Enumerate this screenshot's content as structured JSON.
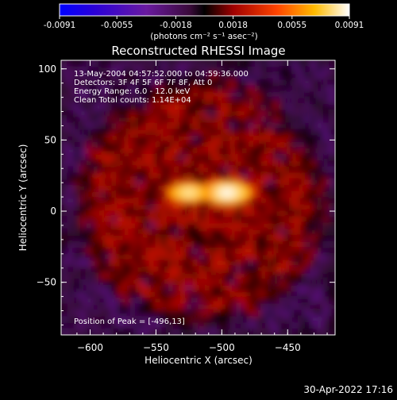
{
  "chart_data": {
    "type": "heatmap",
    "title": "Reconstructed RHESSI Image",
    "xlabel": "Heliocentric X (arcsec)",
    "ylabel": "Heliocentric Y (arcsec)",
    "xlim": [
      -622,
      -414
    ],
    "ylim": [
      -87,
      106
    ],
    "x_ticks": [
      -600,
      -550,
      -500,
      -450
    ],
    "y_ticks": [
      -50,
      0,
      50,
      100
    ],
    "colorbar": {
      "colormap": "hot-with-blue-negative",
      "range": [
        -0.0091,
        0.0091
      ],
      "tick_values": [
        -0.0091,
        -0.0055,
        -0.0018,
        0.0018,
        0.0055,
        0.0091
      ],
      "tick_labels": [
        "-0.0091",
        "-0.0055",
        "-0.0018",
        "0.0018",
        "0.0055",
        "0.0091"
      ],
      "label": "(photons cm⁻² s⁻¹ asec⁻²)"
    },
    "info_lines": [
      "13-May-2004 04:57:52.000 to 04:59:36.000",
      "Detectors: 3F 4F 5F 6F 7F 8F, Att 0",
      "Energy Range: 6.0 - 12.0 keV",
      "Clean    Total counts: 1.14E+04"
    ],
    "peak_label": "Position of Peak = [-496,13]",
    "peak": [
      -496,
      13
    ],
    "sources": [
      {
        "x": -496,
        "y": 13,
        "amp": 1.0
      },
      {
        "x": -525,
        "y": 13,
        "amp": 0.7
      }
    ]
  },
  "timestamp": "30-Apr-2022 17:16"
}
